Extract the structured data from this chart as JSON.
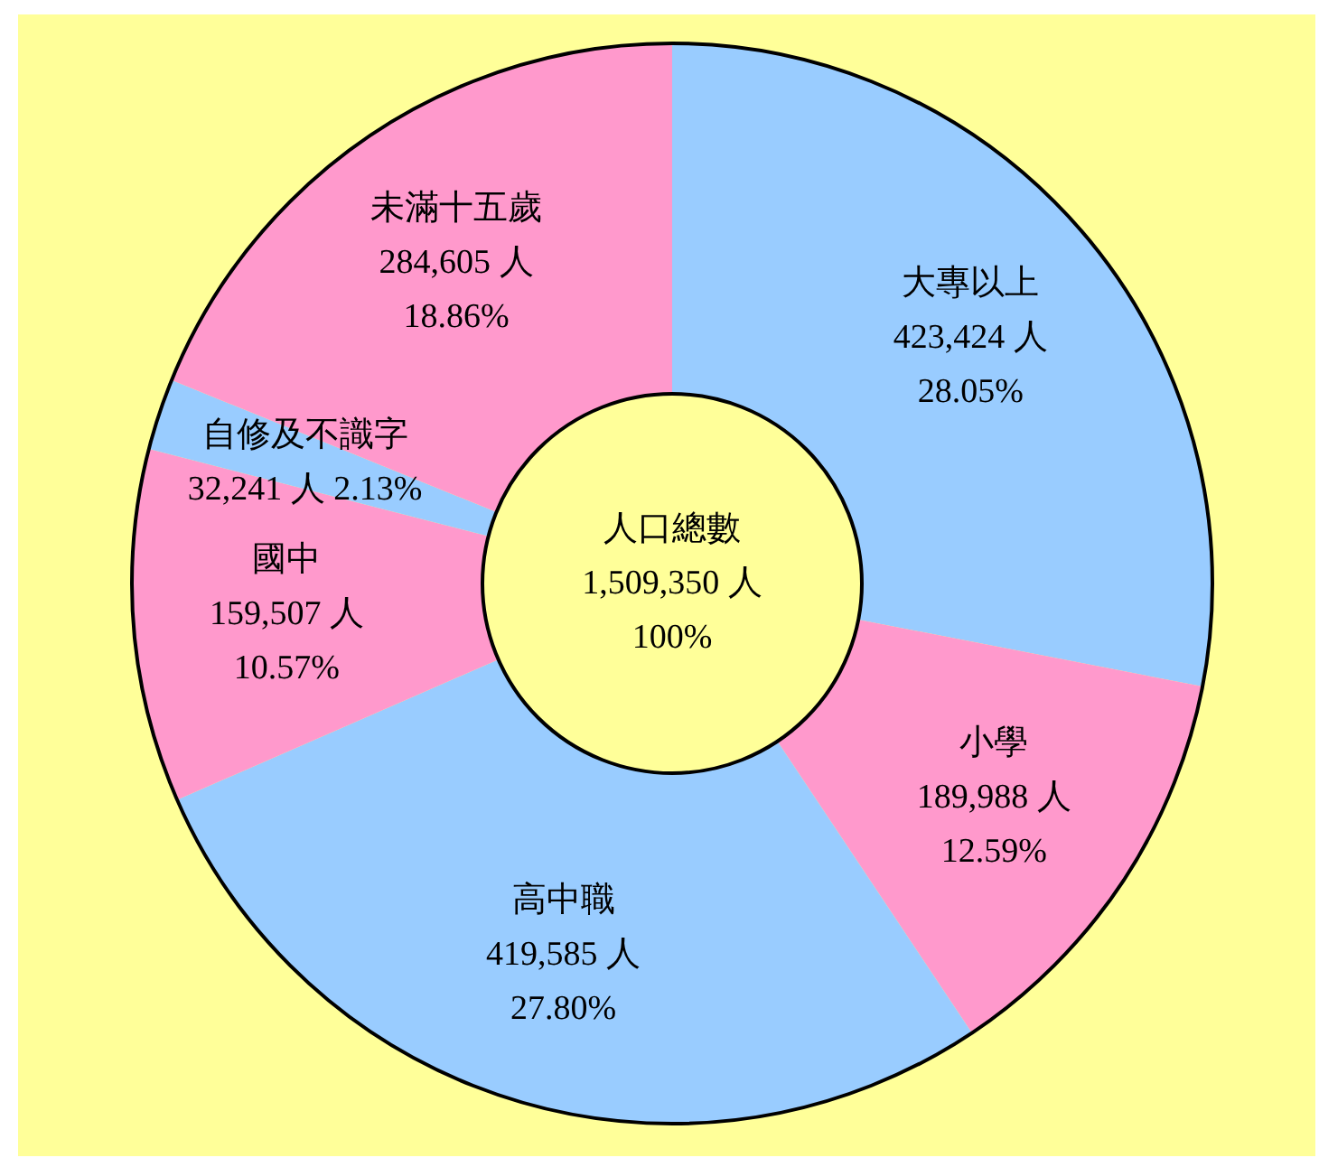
{
  "chart_data": {
    "type": "donut",
    "categories": [
      "大專以上",
      "小學",
      "高中職",
      "國中",
      "自修及不識字",
      "未滿十五歲"
    ],
    "values": [
      423424,
      189988,
      419585,
      159507,
      32241,
      284605
    ],
    "colors": [
      "#99ccff",
      "#ff99cc",
      "#99ccff",
      "#ff99cc",
      "#99ccff",
      "#ff99cc"
    ],
    "value_labels": [
      "423,424 人\n28.05%",
      "189,988 人\n12.59%",
      "419,585 人\n27.80%",
      "159,507 人\n10.57%",
      "32,241 人 2.13%",
      "284,605 人\n18.86%"
    ],
    "annotations": [
      "人口總數",
      "1,509,350 人",
      "100%"
    ],
    "legend": false
  }
}
